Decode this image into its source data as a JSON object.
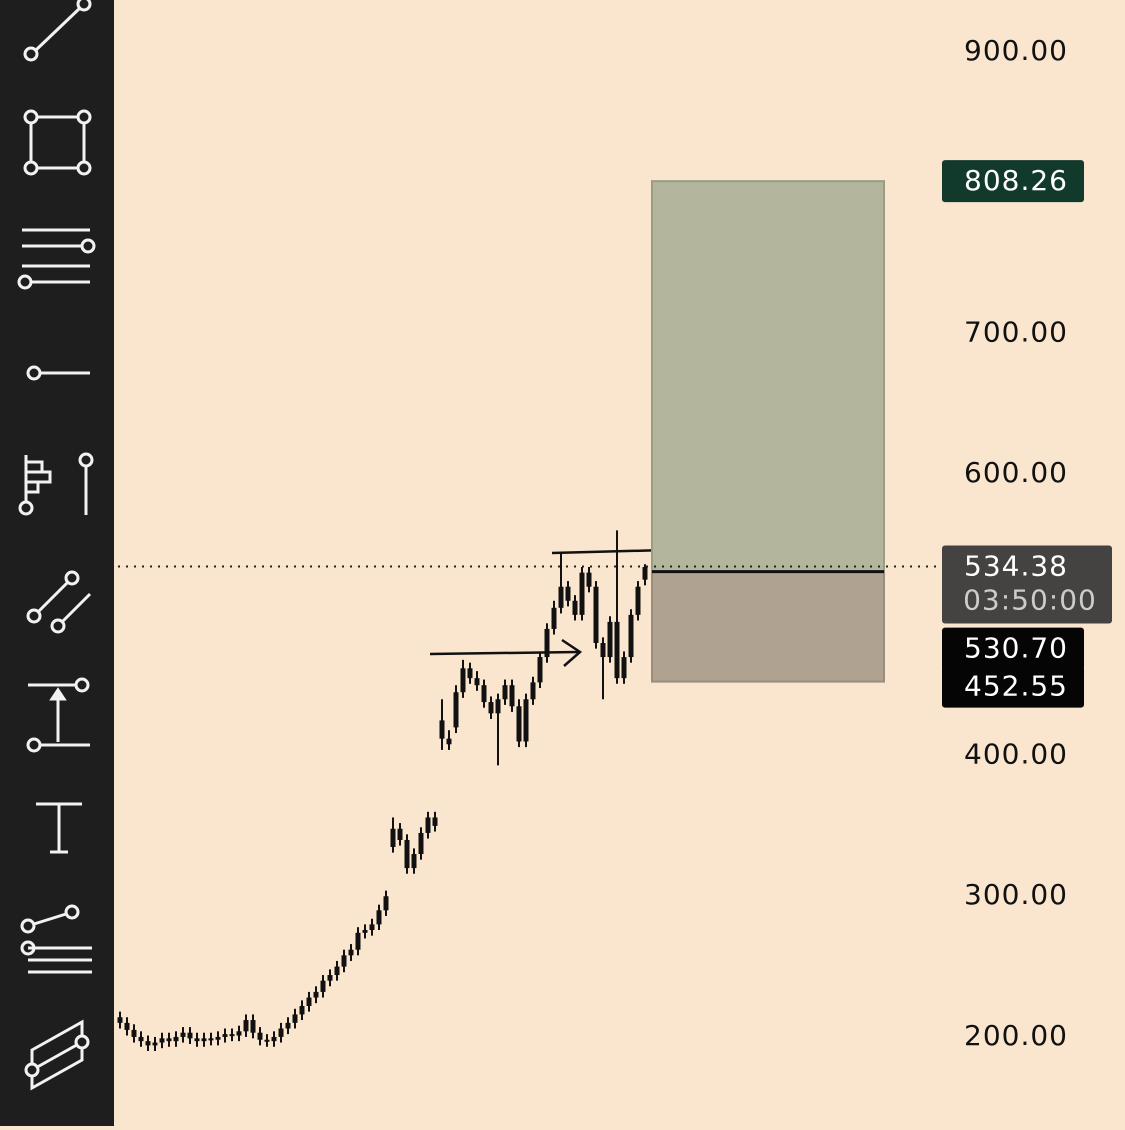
{
  "chart_data": {
    "type": "candlestick",
    "open": [
      214,
      210,
      205,
      200,
      197,
      194,
      196,
      199,
      197,
      200,
      203,
      199,
      197,
      199,
      198,
      200,
      202,
      201,
      204,
      212,
      203,
      198,
      197,
      200,
      206,
      210,
      216,
      222,
      228,
      232,
      240,
      244,
      250,
      258,
      262,
      274,
      276,
      280,
      290,
      335,
      348,
      340,
      320,
      330,
      345,
      356,
      425,
      412,
      420,
      445,
      462,
      455,
      450,
      438,
      430,
      440,
      450,
      435,
      410,
      440,
      452,
      470,
      490,
      505,
      520,
      510,
      500,
      530,
      520,
      480,
      470,
      495,
      455,
      470,
      500,
      525
    ],
    "high": [
      218,
      214,
      209,
      204,
      201,
      200,
      203,
      203,
      204,
      207,
      207,
      203,
      203,
      203,
      204,
      206,
      206,
      208,
      216,
      216,
      207,
      202,
      204,
      210,
      214,
      220,
      226,
      232,
      236,
      244,
      248,
      254,
      262,
      266,
      278,
      280,
      284,
      294,
      304,
      356,
      352,
      344,
      334,
      349,
      360,
      360,
      440,
      418,
      450,
      468,
      466,
      460,
      454,
      442,
      444,
      454,
      454,
      440,
      444,
      456,
      474,
      494,
      510,
      545,
      524,
      514,
      534,
      534,
      524,
      484,
      499,
      560,
      474,
      504,
      524,
      536
    ],
    "low": [
      206,
      201,
      196,
      193,
      190,
      190,
      192,
      193,
      193,
      196,
      195,
      193,
      193,
      194,
      194,
      196,
      197,
      197,
      200,
      199,
      194,
      193,
      193,
      196,
      202,
      206,
      212,
      218,
      224,
      228,
      236,
      240,
      246,
      254,
      258,
      270,
      272,
      276,
      286,
      331,
      336,
      316,
      316,
      326,
      341,
      346,
      404,
      404,
      416,
      441,
      451,
      446,
      434,
      426,
      393,
      436,
      431,
      406,
      406,
      436,
      448,
      466,
      486,
      501,
      506,
      496,
      496,
      516,
      476,
      440,
      466,
      451,
      451,
      466,
      496,
      521
    ],
    "close": [
      210,
      205,
      200,
      197,
      194,
      196,
      199,
      197,
      200,
      203,
      199,
      197,
      199,
      198,
      200,
      202,
      201,
      204,
      212,
      203,
      198,
      197,
      200,
      206,
      210,
      216,
      222,
      228,
      232,
      240,
      244,
      250,
      258,
      262,
      274,
      276,
      280,
      290,
      300,
      348,
      340,
      320,
      330,
      345,
      356,
      350,
      412,
      408,
      445,
      462,
      455,
      450,
      438,
      430,
      440,
      450,
      435,
      410,
      440,
      452,
      470,
      490,
      505,
      520,
      510,
      500,
      530,
      520,
      480,
      470,
      495,
      455,
      470,
      500,
      520,
      534
    ],
    "color": "#111111",
    "ylim": [
      136.7,
      937
    ],
    "yticks": [
      {
        "value": 900,
        "label": "900.00"
      },
      {
        "value": 700,
        "label": "700.00"
      },
      {
        "value": 600,
        "label": "600.00"
      },
      {
        "value": 400,
        "label": "400.00"
      },
      {
        "value": 300,
        "label": "300.00"
      },
      {
        "value": 200,
        "label": "200.00"
      }
    ],
    "target": 808.26,
    "entry": {
      "value": 530.7,
      "label": "530.70"
    },
    "stop": 452.55,
    "last_price": 534.38,
    "countdown": "03:50:00"
  }
}
